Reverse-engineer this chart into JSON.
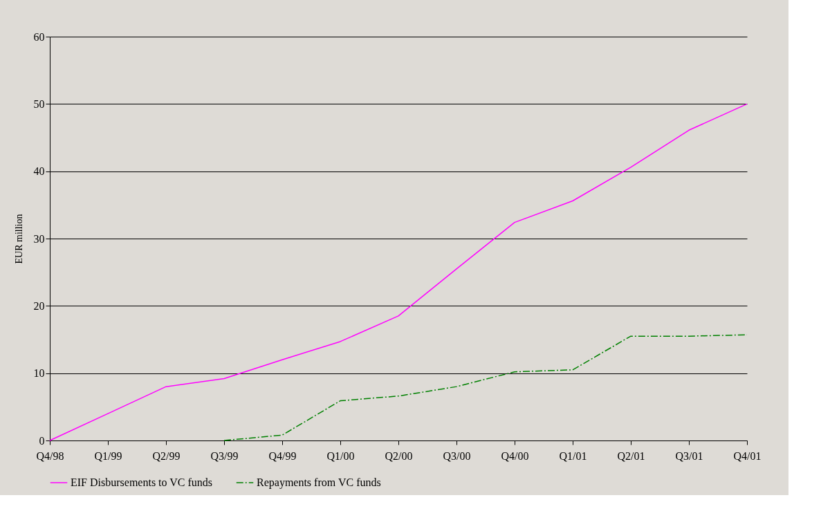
{
  "chart_data": {
    "type": "line",
    "ylabel": "EUR million",
    "categories": [
      "Q4/98",
      "Q1/99",
      "Q2/99",
      "Q3/99",
      "Q4/99",
      "Q1/00",
      "Q2/00",
      "Q3/00",
      "Q4/00",
      "Q1/01",
      "Q2/01",
      "Q3/01",
      "Q4/01"
    ],
    "series": [
      {
        "name": "EIF Disbursements to VC funds",
        "color": "#ff00ff",
        "line_style": "solid",
        "values": [
          0,
          4,
          8,
          9.2,
          12,
          14.7,
          18.5,
          25.5,
          32.4,
          35.6,
          40.6,
          46.1,
          50
        ]
      },
      {
        "name": "Repayments from VC funds",
        "color": "#008000",
        "line_style": "dashed",
        "values": [
          null,
          null,
          null,
          0,
          0.8,
          5.9,
          6.6,
          8,
          10.2,
          10.5,
          15.5,
          15.5,
          15.7
        ]
      }
    ],
    "ylim": [
      0,
      60
    ],
    "yticks": [
      0,
      10,
      20,
      30,
      40,
      50,
      60
    ],
    "grid": "y",
    "legend": "bottom",
    "marker": "none"
  }
}
